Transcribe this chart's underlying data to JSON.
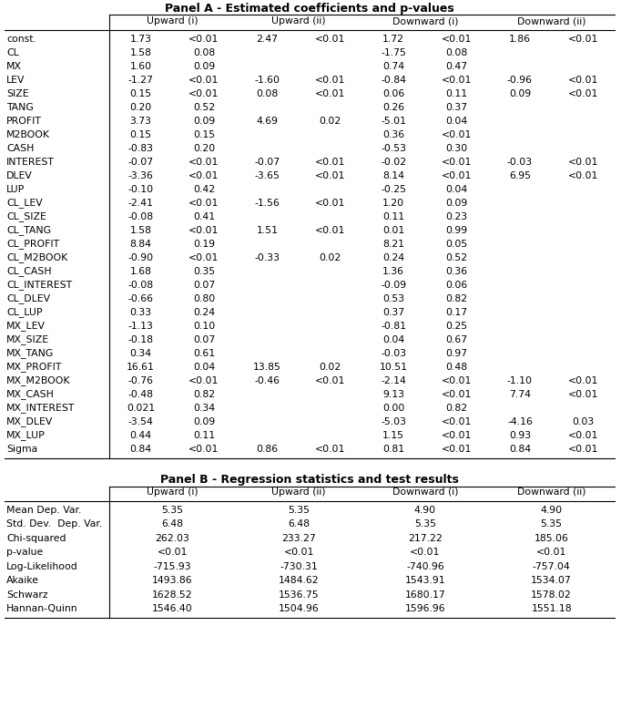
{
  "title_a": "Panel A - Estimated coefficients and p-values",
  "title_b": "Panel B - Regression statistics and test results",
  "rows_a": [
    [
      "const.",
      "1.73",
      "<0.01",
      "2.47",
      "<0.01",
      "1.72",
      "<0.01",
      "1.86",
      "<0.01"
    ],
    [
      "CL",
      "1.58",
      "0.08",
      "",
      "",
      "-1.75",
      "0.08",
      "",
      ""
    ],
    [
      "MX",
      "1.60",
      "0.09",
      "",
      "",
      "0.74",
      "0.47",
      "",
      ""
    ],
    [
      "LEV",
      "-1.27",
      "<0.01",
      "-1.60",
      "<0.01",
      "-0.84",
      "<0.01",
      "-0.96",
      "<0.01"
    ],
    [
      "SIZE",
      "0.15",
      "<0.01",
      "0.08",
      "<0.01",
      "0.06",
      "0.11",
      "0.09",
      "<0.01"
    ],
    [
      "TANG",
      "0.20",
      "0.52",
      "",
      "",
      "0.26",
      "0.37",
      "",
      ""
    ],
    [
      "PROFIT",
      "3.73",
      "0.09",
      "4.69",
      "0.02",
      "-5.01",
      "0.04",
      "",
      ""
    ],
    [
      "M2BOOK",
      "0.15",
      "0.15",
      "",
      "",
      "0.36",
      "<0.01",
      "",
      ""
    ],
    [
      "CASH",
      "-0.83",
      "0.20",
      "",
      "",
      "-0.53",
      "0.30",
      "",
      ""
    ],
    [
      "INTEREST",
      "-0.07",
      "<0.01",
      "-0.07",
      "<0.01",
      "-0.02",
      "<0.01",
      "-0.03",
      "<0.01"
    ],
    [
      "DLEV",
      "-3.36",
      "<0.01",
      "-3.65",
      "<0.01",
      "8.14",
      "<0.01",
      "6.95",
      "<0.01"
    ],
    [
      "LUP",
      "-0.10",
      "0.42",
      "",
      "",
      "-0.25",
      "0.04",
      "",
      ""
    ],
    [
      "CL_LEV",
      "-2.41",
      "<0.01",
      "-1.56",
      "<0.01",
      "1.20",
      "0.09",
      "",
      ""
    ],
    [
      "CL_SIZE",
      "-0.08",
      "0.41",
      "",
      "",
      "0.11",
      "0.23",
      "",
      ""
    ],
    [
      "CL_TANG",
      "1.58",
      "<0.01",
      "1.51",
      "<0.01",
      "0.01",
      "0.99",
      "",
      ""
    ],
    [
      "CL_PROFIT",
      "8.84",
      "0.19",
      "",
      "",
      "8.21",
      "0.05",
      "",
      ""
    ],
    [
      "CL_M2BOOK",
      "-0.90",
      "<0.01",
      "-0.33",
      "0.02",
      "0.24",
      "0.52",
      "",
      ""
    ],
    [
      "CL_CASH",
      "1.68",
      "0.35",
      "",
      "",
      "1.36",
      "0.36",
      "",
      ""
    ],
    [
      "CL_INTEREST",
      "-0.08",
      "0.07",
      "",
      "",
      "-0.09",
      "0.06",
      "",
      ""
    ],
    [
      "CL_DLEV",
      "-0.66",
      "0.80",
      "",
      "",
      "0.53",
      "0.82",
      "",
      ""
    ],
    [
      "CL_LUP",
      "0.33",
      "0.24",
      "",
      "",
      "0.37",
      "0.17",
      "",
      ""
    ],
    [
      "MX_LEV",
      "-1.13",
      "0.10",
      "",
      "",
      "-0.81",
      "0.25",
      "",
      ""
    ],
    [
      "MX_SIZE",
      "-0.18",
      "0.07",
      "",
      "",
      "0.04",
      "0.67",
      "",
      ""
    ],
    [
      "MX_TANG",
      "0.34",
      "0.61",
      "",
      "",
      "-0.03",
      "0.97",
      "",
      ""
    ],
    [
      "MX_PROFIT",
      "16.61",
      "0.04",
      "13.85",
      "0.02",
      "10.51",
      "0.48",
      "",
      ""
    ],
    [
      "MX_M2BOOK",
      "-0.76",
      "<0.01",
      "-0.46",
      "<0.01",
      "-2.14",
      "<0.01",
      "-1.10",
      "<0.01"
    ],
    [
      "MX_CASH",
      "-0.48",
      "0.82",
      "",
      "",
      "9.13",
      "<0.01",
      "7.74",
      "<0.01"
    ],
    [
      "MX_INTEREST",
      "0.021",
      "0.34",
      "",
      "",
      "0.00",
      "0.82",
      "",
      ""
    ],
    [
      "MX_DLEV",
      "-3.54",
      "0.09",
      "",
      "",
      "-5.03",
      "<0.01",
      "-4.16",
      "0.03"
    ],
    [
      "MX_LUP",
      "0.44",
      "0.11",
      "",
      "",
      "1.15",
      "<0.01",
      "0.93",
      "<0.01"
    ],
    [
      "Sigma",
      "0.84",
      "<0.01",
      "0.86",
      "<0.01",
      "0.81",
      "<0.01",
      "0.84",
      "<0.01"
    ]
  ],
  "rows_b": [
    [
      "Mean Dep. Var.",
      "5.35",
      "5.35",
      "4.90",
      "4.90"
    ],
    [
      "Std. Dev.  Dep. Var.",
      "6.48",
      "6.48",
      "5.35",
      "5.35"
    ],
    [
      "Chi-squared",
      "262.03",
      "233.27",
      "217.22",
      "185.06"
    ],
    [
      "p-value",
      "<0.01",
      "<0.01",
      "<0.01",
      "<0.01"
    ],
    [
      "Log-Likelihood",
      "-715.93",
      "-730.31",
      "-740.96",
      "-757.04"
    ],
    [
      "Akaike",
      "1493.86",
      "1484.62",
      "1543.91",
      "1534.07"
    ],
    [
      "Schwarz",
      "1628.52",
      "1536.75",
      "1680.17",
      "1578.02"
    ],
    [
      "Hannan-Quinn",
      "1546.40",
      "1504.96",
      "1596.96",
      "1551.18"
    ]
  ],
  "group_labels_a": [
    "Upward (i)",
    "Upward (ii)",
    "Downward (i)",
    "Downward (ii)"
  ],
  "group_labels_b": [
    "Upward (i)",
    "Upward (ii)",
    "Downward (i)",
    "Downward (ii)"
  ],
  "background_color": "#ffffff",
  "text_color": "#000000",
  "font_size": 7.8,
  "title_font_size": 9.0
}
